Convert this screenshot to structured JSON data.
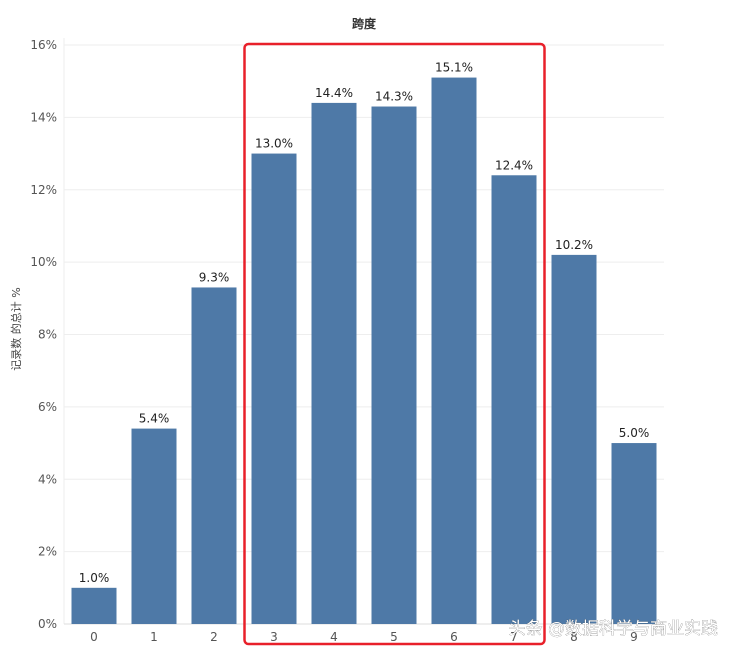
{
  "chart_data": {
    "type": "bar",
    "title": "跨度",
    "xlabel": "",
    "ylabel": "记录数 的总计 %",
    "categories": [
      "0",
      "1",
      "2",
      "3",
      "4",
      "5",
      "6",
      "7",
      "8",
      "9"
    ],
    "values": [
      1.0,
      5.4,
      9.3,
      13.0,
      14.4,
      14.3,
      15.1,
      12.4,
      10.2,
      5.0
    ],
    "data_labels": [
      "1.0%",
      "5.4%",
      "9.3%",
      "13.0%",
      "14.4%",
      "14.3%",
      "15.1%",
      "12.4%",
      "10.2%",
      "5.0%"
    ],
    "ylim": [
      0,
      16
    ],
    "yticks": [
      "0%",
      "2%",
      "4%",
      "6%",
      "8%",
      "10%",
      "12%",
      "14%",
      "16%"
    ],
    "grid": true,
    "bar_color": "#4e79a7",
    "highlight": {
      "from_category": "3",
      "to_category": "7",
      "color": "#e8202a"
    }
  },
  "watermark": "头条 @数据科学与商业实践"
}
